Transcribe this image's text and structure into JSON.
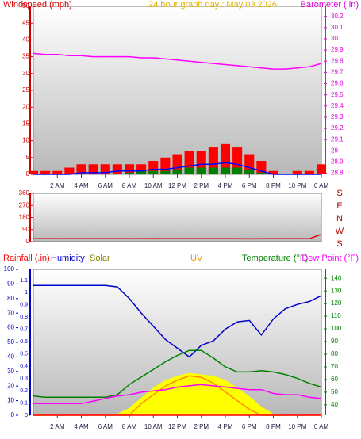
{
  "chart_data": [
    {
      "type": "line",
      "title": "24 hour graph day : May 03 2026",
      "y_label": "Windspeed (mph)",
      "y2_label": "Barometer (.in)",
      "x": [
        0,
        1,
        2,
        3,
        4,
        5,
        6,
        7,
        8,
        9,
        10,
        11,
        12,
        13,
        14,
        15,
        16,
        17,
        18,
        19,
        20,
        21,
        22,
        23,
        24
      ],
      "xlim": [
        0,
        24
      ],
      "xticks": [
        {
          "value": 2,
          "label": "2 AM"
        },
        {
          "value": 4,
          "label": "4 AM"
        },
        {
          "value": 6,
          "label": "6 AM"
        },
        {
          "value": 8,
          "label": "8 AM"
        },
        {
          "value": 10,
          "label": "10 AM"
        },
        {
          "value": 12,
          "label": "12 PM"
        },
        {
          "value": 14,
          "label": "2 PM"
        },
        {
          "value": 16,
          "label": "4 PM"
        },
        {
          "value": 18,
          "label": "6 PM"
        },
        {
          "value": 20,
          "label": "8 PM"
        },
        {
          "value": 22,
          "label": "10 PM"
        },
        {
          "value": 24,
          "label": "0 AM"
        }
      ],
      "ylim": [
        0,
        50
      ],
      "yticks": [
        0,
        5,
        10,
        15,
        20,
        25,
        30,
        35,
        40,
        45,
        50
      ],
      "y2lim": [
        28.79,
        30.29
      ],
      "y2ticks": [
        28.8,
        28.9,
        29,
        29.1,
        29.2,
        29.3,
        29.4,
        29.5,
        29.6,
        29.7,
        29.8,
        29.9,
        30,
        30.1,
        30.2
      ],
      "series": [
        {
          "color": "#ff0000",
          "mark": "bar",
          "values": [
            1,
            1,
            1,
            2,
            3,
            3,
            3,
            3,
            3,
            3,
            4,
            5,
            6,
            7,
            7,
            8,
            9,
            8,
            6,
            4,
            1,
            0,
            1,
            1,
            3
          ]
        },
        {
          "color": "#008000",
          "mark": "bar",
          "values": [
            0,
            0,
            0,
            0,
            0,
            0,
            0,
            0,
            0.5,
            1,
            1,
            1,
            1.5,
            2,
            2,
            2,
            2,
            2,
            1.5,
            0.5,
            0,
            0,
            0,
            0,
            0
          ]
        },
        {
          "color": "#0000ff",
          "mark": "line",
          "values": [
            0,
            0,
            0,
            0,
            0.5,
            0.5,
            0.5,
            1,
            1,
            1,
            1.5,
            1.5,
            2,
            2.5,
            3,
            3,
            3.5,
            3,
            2,
            1,
            0,
            0,
            0,
            0,
            0
          ]
        },
        {
          "color": "#ff00ff",
          "mark": "line",
          "axis": "y2",
          "values": [
            29.87,
            29.86,
            29.86,
            29.85,
            29.85,
            29.84,
            29.84,
            29.84,
            29.84,
            29.83,
            29.83,
            29.82,
            29.81,
            29.8,
            29.79,
            29.78,
            29.77,
            29.76,
            29.75,
            29.74,
            29.73,
            29.73,
            29.74,
            29.75,
            29.78
          ]
        }
      ]
    },
    {
      "type": "line",
      "x": [
        0,
        1,
        2,
        3,
        4,
        5,
        6,
        7,
        8,
        9,
        10,
        11,
        12,
        13,
        14,
        15,
        16,
        17,
        18,
        19,
        20,
        21,
        22,
        23,
        24
      ],
      "xlim": [
        0,
        24
      ],
      "ylim": [
        0,
        360
      ],
      "yticks": [
        0,
        90,
        180,
        270,
        360
      ],
      "compass": [
        "S",
        "E",
        "N",
        "W",
        "S"
      ],
      "series": [
        {
          "color": "#e00000",
          "mark": "line",
          "values": [
            22,
            22,
            22,
            22,
            22,
            22,
            22,
            22,
            22,
            22,
            23,
            22,
            22,
            22,
            22,
            22,
            22,
            22,
            21,
            22,
            22,
            22,
            22,
            22,
            55
          ]
        }
      ]
    },
    {
      "type": "line",
      "x": [
        0,
        1,
        2,
        3,
        4,
        5,
        6,
        7,
        8,
        9,
        10,
        11,
        12,
        13,
        14,
        15,
        16,
        17,
        18,
        19,
        20,
        21,
        22,
        23,
        24
      ],
      "xlim": [
        0,
        24
      ],
      "xticks": [
        {
          "value": 2,
          "label": "2 AM"
        },
        {
          "value": 4,
          "label": "4 AM"
        },
        {
          "value": 6,
          "label": "6 AM"
        },
        {
          "value": 8,
          "label": "8 AM"
        },
        {
          "value": 10,
          "label": "10 AM"
        },
        {
          "value": 12,
          "label": "12 PM"
        },
        {
          "value": 14,
          "label": "2 PM"
        },
        {
          "value": 16,
          "label": "4 PM"
        },
        {
          "value": 18,
          "label": "6 PM"
        },
        {
          "value": 20,
          "label": "8 PM"
        },
        {
          "value": 22,
          "label": "10 PM"
        },
        {
          "value": 24,
          "label": "0 AM"
        }
      ],
      "ylim": [
        0,
        100
      ],
      "yticks": [
        0,
        10,
        20,
        30,
        40,
        50,
        60,
        70,
        80,
        90,
        100
      ],
      "y3lim": [
        0,
        1.19
      ],
      "y3ticks": [
        0,
        0.1,
        0.2,
        0.3,
        0.4,
        0.5,
        0.6,
        0.7,
        0.8,
        0.9,
        1,
        1.1
      ],
      "y2lim": [
        31.8,
        147
      ],
      "y2ticks": [
        40,
        50,
        60,
        70,
        80,
        90,
        100,
        110,
        120,
        130,
        140
      ],
      "series": [
        {
          "name": "Solar",
          "color": "#ffff00",
          "mark": "area",
          "values": [
            0,
            0,
            0,
            0,
            0,
            0,
            0,
            1,
            5,
            12,
            19,
            24,
            27,
            29,
            28,
            27,
            24,
            19,
            13,
            6,
            1,
            0,
            0,
            0,
            0
          ]
        },
        {
          "name": "UV",
          "color": "#ff8c00",
          "mark": "line",
          "values": [
            0,
            0,
            0,
            0,
            0,
            0,
            0,
            0,
            0,
            8,
            14,
            20,
            24,
            27,
            26,
            22,
            16,
            10,
            4,
            0,
            0,
            0,
            0,
            0,
            0
          ]
        },
        {
          "name": "Humidity",
          "color": "#0000cd",
          "mark": "line",
          "values": [
            89,
            89,
            89,
            89,
            89,
            89,
            89,
            88,
            80,
            70,
            61,
            52,
            46,
            40,
            48,
            51,
            59,
            64,
            65,
            55,
            66,
            73,
            76,
            78,
            82
          ]
        },
        {
          "name": "Temperature (°F)",
          "color": "#008000",
          "mark": "line",
          "axis": "y2",
          "values": [
            47,
            46,
            46,
            46,
            46,
            46,
            46,
            48,
            56,
            62,
            68,
            74,
            79,
            83,
            83,
            77,
            70,
            66,
            66,
            67,
            66,
            64,
            61,
            57,
            54
          ]
        },
        {
          "name": "Dew Point (°F)",
          "color": "#ff00ff",
          "mark": "line",
          "axis": "y2",
          "values": [
            41,
            41,
            41,
            41,
            41,
            43,
            45,
            47,
            48,
            50,
            51,
            52,
            54,
            55,
            56,
            55,
            54,
            53,
            52,
            52,
            49,
            48,
            48,
            46,
            45
          ]
        },
        {
          "name": "Rainfall (.in)",
          "color": "#ff0000",
          "mark": "line",
          "axis": "y3",
          "values": [
            0,
            0,
            0,
            0,
            0,
            0,
            0,
            0,
            0,
            0,
            0,
            0,
            0,
            0,
            0,
            0,
            0,
            0,
            0,
            0,
            0,
            0,
            0,
            0,
            0
          ]
        }
      ]
    }
  ]
}
